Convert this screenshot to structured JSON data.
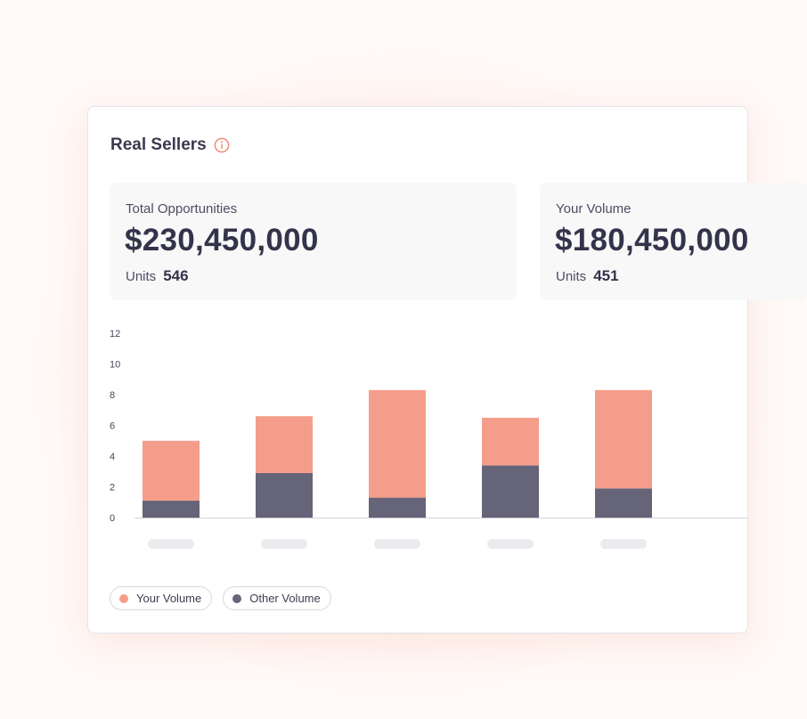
{
  "card": {
    "title": "Real Sellers",
    "info_icon": "info-icon"
  },
  "stats": [
    {
      "label": "Total Opportunities",
      "value": "$230,450,000",
      "units_label": "Units",
      "units_value": "546"
    },
    {
      "label": "Your Volume",
      "value": "$180,450,000",
      "units_label": "Units",
      "units_value": "451"
    }
  ],
  "colors": {
    "your_volume": "#f59d8b",
    "other_volume": "#666479",
    "info_icon": "#ef8a74",
    "axis": "#d4d4dc",
    "tick_text": "#45455a",
    "placeholder": "#ebebef"
  },
  "chart_data": {
    "type": "bar",
    "stacked": true,
    "categories": [
      "",
      "",
      "",
      "",
      ""
    ],
    "y_ticks": [
      "0",
      "2",
      "4",
      "6",
      "8",
      "10",
      "12"
    ],
    "ylim": [
      0,
      12
    ],
    "series": [
      {
        "name": "Other Volume",
        "color": "#666479",
        "values": [
          1.1,
          2.9,
          1.3,
          3.4,
          1.9
        ]
      },
      {
        "name": "Your Volume",
        "color": "#f59d8b",
        "values": [
          3.9,
          3.7,
          7.0,
          3.1,
          6.4
        ]
      }
    ],
    "legend": "bottom-left"
  },
  "legend": {
    "your_volume": "Your Volume",
    "other_volume": "Other Volume"
  }
}
